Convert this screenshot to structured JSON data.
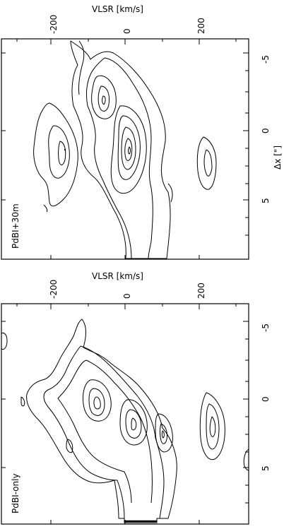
{
  "figure": {
    "panels": [
      {
        "id": "top",
        "label": "PdBI+30m",
        "vlsr_axis_title": "VLSR [km/s]",
        "vlsr_ticks": [
          "-200",
          "0",
          "200"
        ],
        "dx_ticks": [
          "-5",
          "0",
          "5"
        ],
        "dx_axis_title": "Δx [\"]"
      },
      {
        "id": "bottom",
        "label": "PdBI-only",
        "vlsr_axis_title": "VLSR [km/s]",
        "vlsr_ticks": [
          "-200",
          "0",
          "200"
        ],
        "dx_ticks": [
          "-5",
          "0",
          "5"
        ],
        "dx_axis_title": ""
      }
    ]
  }
}
